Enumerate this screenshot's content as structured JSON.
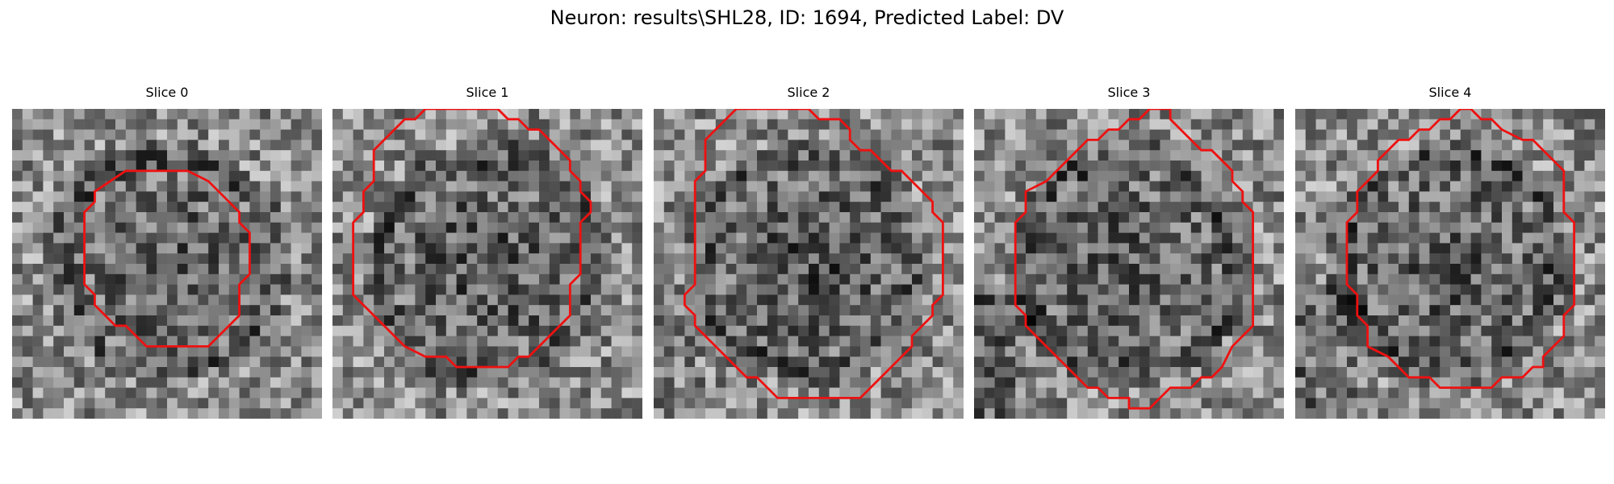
{
  "figure": {
    "title": "Neuron: results\\SHL28, ID: 1694, Predicted Label: DV",
    "contour_color": "#ee1111"
  },
  "slices": [
    {
      "title": "Slice 0",
      "seed": 17,
      "darkness": 0.32,
      "ring": 0.28,
      "shadow": 0.0
    },
    {
      "title": "Slice 1",
      "seed": 41,
      "darkness": 0.48,
      "ring": 0.32,
      "shadow": 0.0
    },
    {
      "title": "Slice 2",
      "seed": 73,
      "darkness": 0.52,
      "ring": 0.25,
      "shadow": 0.2
    },
    {
      "title": "Slice 3",
      "seed": 29,
      "darkness": 0.35,
      "ring": 0.3,
      "shadow": 0.55
    },
    {
      "title": "Slice 4",
      "seed": 97,
      "darkness": 0.4,
      "ring": 0.35,
      "shadow": 0.45
    }
  ]
}
